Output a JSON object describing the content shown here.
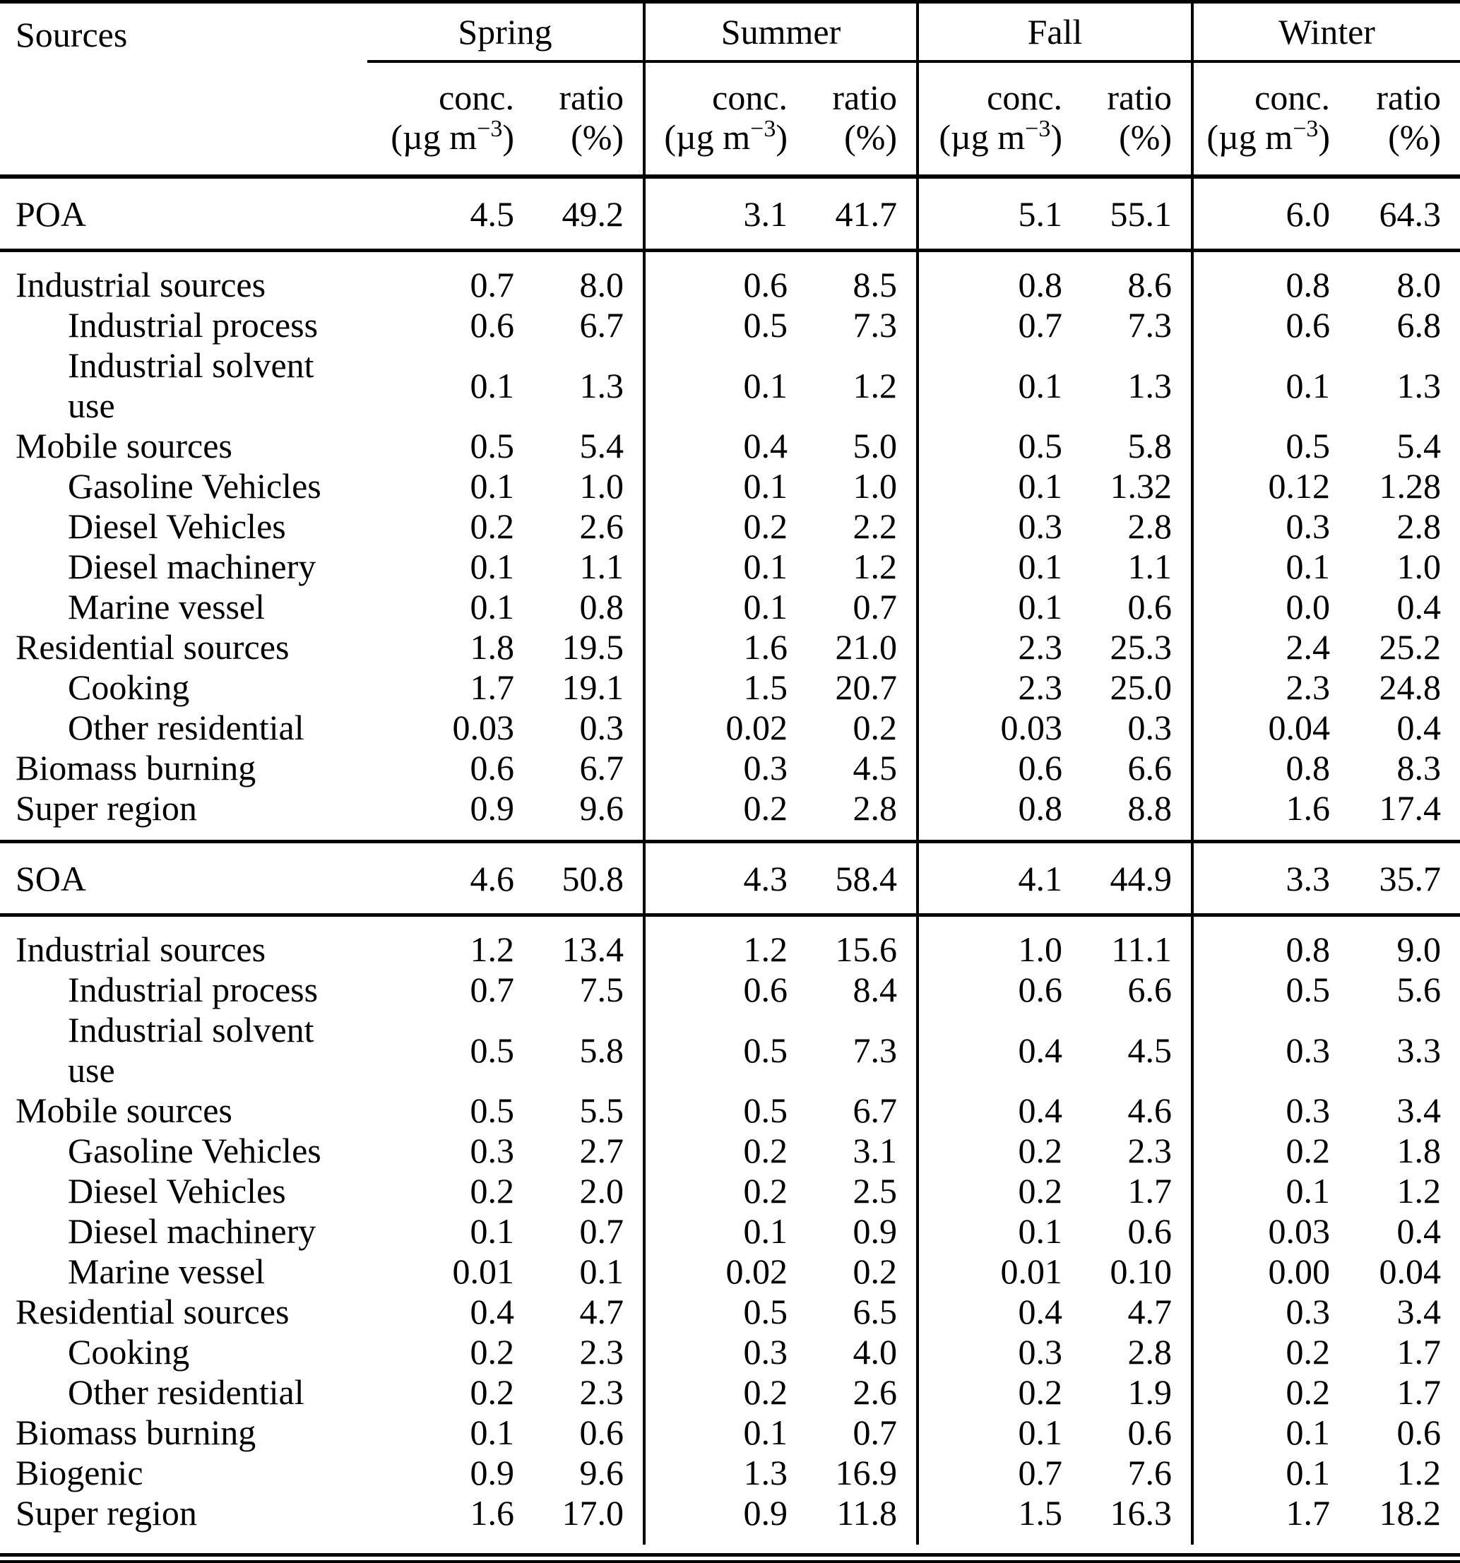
{
  "table": {
    "title_col": "Sources",
    "seasons": [
      "Spring",
      "Summer",
      "Fall",
      "Winter"
    ],
    "subheader": {
      "conc_label": "conc.",
      "conc_unit_prefix": "(µg m",
      "conc_unit_exp": "−3",
      "conc_unit_suffix": ")",
      "ratio_label": "ratio",
      "ratio_unit": "(%)"
    },
    "sections": [
      {
        "total_row": {
          "label": "POA",
          "values": [
            "4.5",
            "49.2",
            "3.1",
            "41.7",
            "5.1",
            "55.1",
            "6.0",
            "64.3"
          ]
        },
        "rows": [
          {
            "label": "Industrial sources",
            "sub": false,
            "values": [
              "0.7",
              "8.0",
              "0.6",
              "8.5",
              "0.8",
              "8.6",
              "0.8",
              "8.0"
            ]
          },
          {
            "label": "Industrial process",
            "sub": true,
            "values": [
              "0.6",
              "6.7",
              "0.5",
              "7.3",
              "0.7",
              "7.3",
              "0.6",
              "6.8"
            ]
          },
          {
            "label": "Industrial solvent use",
            "sub": true,
            "values": [
              "0.1",
              "1.3",
              "0.1",
              "1.2",
              "0.1",
              "1.3",
              "0.1",
              "1.3"
            ]
          },
          {
            "label": "Mobile sources",
            "sub": false,
            "values": [
              "0.5",
              "5.4",
              "0.4",
              "5.0",
              "0.5",
              "5.8",
              "0.5",
              "5.4"
            ]
          },
          {
            "label": "Gasoline Vehicles",
            "sub": true,
            "values": [
              "0.1",
              "1.0",
              "0.1",
              "1.0",
              "0.1",
              "1.32",
              "0.12",
              "1.28"
            ]
          },
          {
            "label": "Diesel Vehicles",
            "sub": true,
            "values": [
              "0.2",
              "2.6",
              "0.2",
              "2.2",
              "0.3",
              "2.8",
              "0.3",
              "2.8"
            ]
          },
          {
            "label": "Diesel machinery",
            "sub": true,
            "values": [
              "0.1",
              "1.1",
              "0.1",
              "1.2",
              "0.1",
              "1.1",
              "0.1",
              "1.0"
            ]
          },
          {
            "label": "Marine vessel",
            "sub": true,
            "values": [
              "0.1",
              "0.8",
              "0.1",
              "0.7",
              "0.1",
              "0.6",
              "0.0",
              "0.4"
            ]
          },
          {
            "label": "Residential sources",
            "sub": false,
            "values": [
              "1.8",
              "19.5",
              "1.6",
              "21.0",
              "2.3",
              "25.3",
              "2.4",
              "25.2"
            ]
          },
          {
            "label": "Cooking",
            "sub": true,
            "values": [
              "1.7",
              "19.1",
              "1.5",
              "20.7",
              "2.3",
              "25.0",
              "2.3",
              "24.8"
            ]
          },
          {
            "label": "Other residential",
            "sub": true,
            "values": [
              "0.03",
              "0.3",
              "0.02",
              "0.2",
              "0.03",
              "0.3",
              "0.04",
              "0.4"
            ]
          },
          {
            "label": "Biomass burning",
            "sub": false,
            "values": [
              "0.6",
              "6.7",
              "0.3",
              "4.5",
              "0.6",
              "6.6",
              "0.8",
              "8.3"
            ]
          },
          {
            "label": "Super region",
            "sub": false,
            "values": [
              "0.9",
              "9.6",
              "0.2",
              "2.8",
              "0.8",
              "8.8",
              "1.6",
              "17.4"
            ]
          }
        ]
      },
      {
        "total_row": {
          "label": "SOA",
          "values": [
            "4.6",
            "50.8",
            "4.3",
            "58.4",
            "4.1",
            "44.9",
            "3.3",
            "35.7"
          ]
        },
        "rows": [
          {
            "label": "Industrial sources",
            "sub": false,
            "values": [
              "1.2",
              "13.4",
              "1.2",
              "15.6",
              "1.0",
              "11.1",
              "0.8",
              "9.0"
            ]
          },
          {
            "label": "Industrial process",
            "sub": true,
            "values": [
              "0.7",
              "7.5",
              "0.6",
              "8.4",
              "0.6",
              "6.6",
              "0.5",
              "5.6"
            ]
          },
          {
            "label": "Industrial solvent use",
            "sub": true,
            "values": [
              "0.5",
              "5.8",
              "0.5",
              "7.3",
              "0.4",
              "4.5",
              "0.3",
              "3.3"
            ]
          },
          {
            "label": "Mobile sources",
            "sub": false,
            "values": [
              "0.5",
              "5.5",
              "0.5",
              "6.7",
              "0.4",
              "4.6",
              "0.3",
              "3.4"
            ]
          },
          {
            "label": "Gasoline Vehicles",
            "sub": true,
            "values": [
              "0.3",
              "2.7",
              "0.2",
              "3.1",
              "0.2",
              "2.3",
              "0.2",
              "1.8"
            ]
          },
          {
            "label": "Diesel Vehicles",
            "sub": true,
            "values": [
              "0.2",
              "2.0",
              "0.2",
              "2.5",
              "0.2",
              "1.7",
              "0.1",
              "1.2"
            ]
          },
          {
            "label": "Diesel machinery",
            "sub": true,
            "values": [
              "0.1",
              "0.7",
              "0.1",
              "0.9",
              "0.1",
              "0.6",
              "0.03",
              "0.4"
            ]
          },
          {
            "label": "Marine vessel",
            "sub": true,
            "values": [
              "0.01",
              "0.1",
              "0.02",
              "0.2",
              "0.01",
              "0.10",
              "0.00",
              "0.04"
            ]
          },
          {
            "label": "Residential sources",
            "sub": false,
            "values": [
              "0.4",
              "4.7",
              "0.5",
              "6.5",
              "0.4",
              "4.7",
              "0.3",
              "3.4"
            ]
          },
          {
            "label": "Cooking",
            "sub": true,
            "values": [
              "0.2",
              "2.3",
              "0.3",
              "4.0",
              "0.3",
              "2.8",
              "0.2",
              "1.7"
            ]
          },
          {
            "label": "Other residential",
            "sub": true,
            "values": [
              "0.2",
              "2.3",
              "0.2",
              "2.6",
              "0.2",
              "1.9",
              "0.2",
              "1.7"
            ]
          },
          {
            "label": "Biomass burning",
            "sub": false,
            "values": [
              "0.1",
              "0.6",
              "0.1",
              "0.7",
              "0.1",
              "0.6",
              "0.1",
              "0.6"
            ]
          },
          {
            "label": "Biogenic",
            "sub": false,
            "values": [
              "0.9",
              "9.6",
              "1.3",
              "16.9",
              "0.7",
              "7.6",
              "0.1",
              "1.2"
            ]
          },
          {
            "label": "Super region",
            "sub": false,
            "values": [
              "1.6",
              "17.0",
              "0.9",
              "11.8",
              "1.5",
              "16.3",
              "1.7",
              "18.2"
            ]
          }
        ]
      }
    ]
  }
}
